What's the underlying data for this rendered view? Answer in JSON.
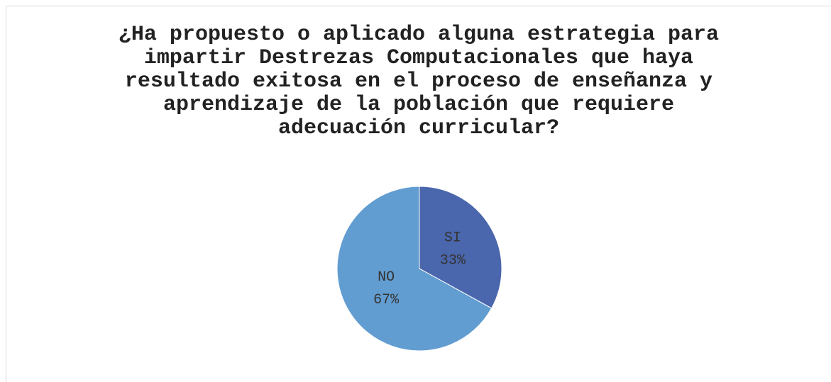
{
  "chart_data": {
    "type": "pie",
    "title": [
      "¿Ha propuesto o aplicado alguna estrategia para",
      "impartir Destrezas Computacionales que haya",
      "resultado exitosa en el proceso de enseñanza y",
      "aprendizaje de la población que requiere",
      "adecuación curricular?"
    ],
    "categories": [
      "SI",
      "NO"
    ],
    "values": [
      33,
      67
    ],
    "value_labels": [
      "33%",
      "67%"
    ],
    "colors": [
      "#4a66ac",
      "#629dd1"
    ]
  }
}
